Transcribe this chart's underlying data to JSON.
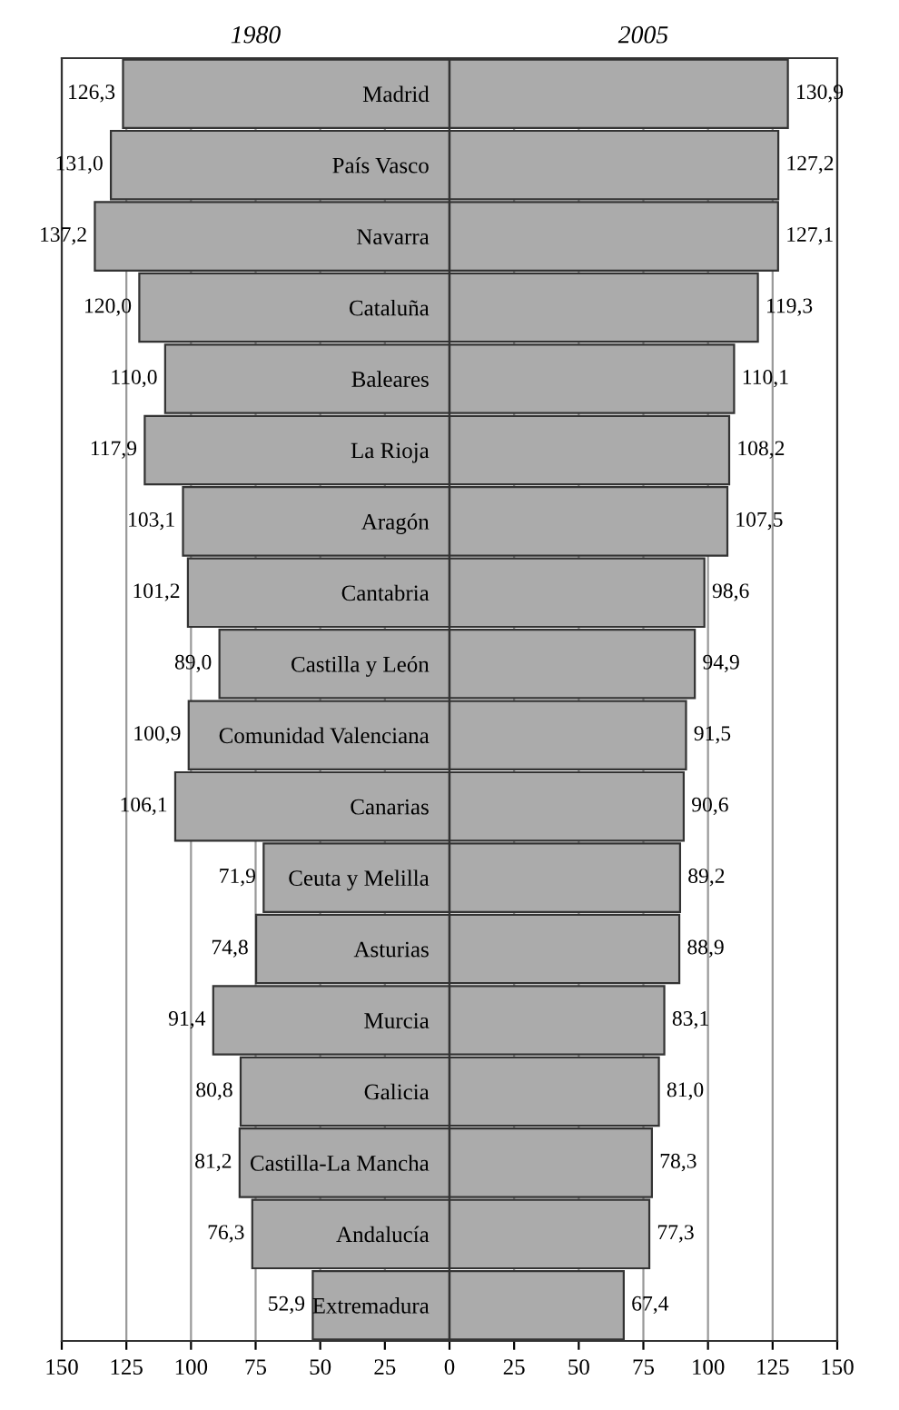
{
  "chart_data": [
    {
      "type": "bar",
      "orientation": "horizontal",
      "title": "1980",
      "color": "#ababab",
      "categories": [
        "Madrid",
        "País Vasco",
        "Navarra",
        "Cataluña",
        "Baleares",
        "La Rioja",
        "Aragón",
        "Cantabria",
        "Castilla y León",
        "Comunidad Valenciana",
        "Canarias",
        "Ceuta y Melilla",
        "Asturias",
        "Murcia",
        "Galicia",
        "Castilla-La Mancha",
        "Andalucía",
        "Extremadura"
      ],
      "values": [
        126.3,
        131.0,
        137.2,
        120.0,
        110.0,
        117.9,
        103.1,
        101.2,
        89.0,
        100.9,
        106.1,
        71.9,
        74.8,
        91.4,
        80.8,
        81.2,
        76.3,
        52.9
      ],
      "value_labels": [
        "126,3",
        "131,0",
        "137,2",
        "120,0",
        "110,0",
        "117,9",
        "103,1",
        "101,2",
        "89,0",
        "100,9",
        "106,1",
        "71,9",
        "74,8",
        "91,4",
        "80,8",
        "81,2",
        "76,3",
        "52,9"
      ],
      "xlim": [
        150,
        0
      ],
      "xticks": [
        150,
        125,
        100,
        75,
        50,
        25,
        0
      ],
      "grid": "x"
    },
    {
      "type": "bar",
      "orientation": "horizontal",
      "title": "2005",
      "color": "#ababab",
      "categories": [
        null,
        null,
        null,
        null,
        null,
        null,
        null,
        null,
        null,
        null,
        null,
        null,
        null,
        null,
        null,
        null,
        null,
        null
      ],
      "values": [
        130.9,
        127.2,
        127.1,
        119.3,
        110.1,
        108.2,
        107.5,
        98.6,
        94.9,
        91.5,
        90.6,
        89.2,
        88.9,
        83.1,
        81.0,
        78.3,
        77.3,
        67.4
      ],
      "value_labels": [
        "130,9",
        "127,2",
        "127,1",
        "119,3",
        "110,1",
        "108,2",
        "107,5",
        "98,6",
        "94,9",
        "91,5",
        "90,6",
        "89,2",
        "88,9",
        "83,1",
        "81,0",
        "78,3",
        "77,3",
        "67,4"
      ],
      "xlim": [
        0,
        150
      ],
      "xticks": [
        25,
        50,
        75,
        100,
        125,
        150
      ],
      "grid": "x",
      "tick_labels": "x"
    }
  ]
}
